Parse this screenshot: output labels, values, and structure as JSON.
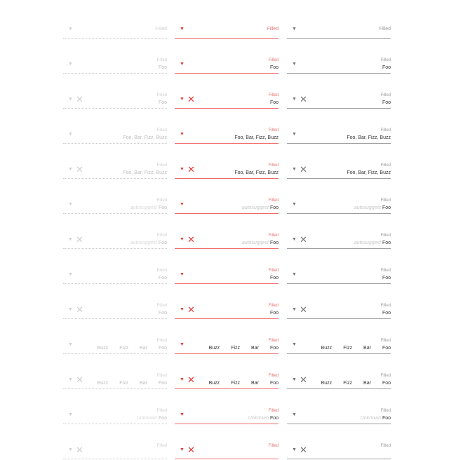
{
  "columns": [
    "disabled",
    "focused",
    "default"
  ],
  "rows": [
    {
      "label": "Filled",
      "value": "",
      "clear": false,
      "chips": [],
      "hint": "",
      "label_big": true
    },
    {
      "label": "Filled",
      "value": "Foo",
      "clear": false,
      "chips": [],
      "hint": ""
    },
    {
      "label": "Filled",
      "value": "Foo",
      "clear": true,
      "chips": [],
      "hint": ""
    },
    {
      "label": "Filled",
      "value": "Foo, Bar, Fizz, Buzz",
      "clear": false,
      "chips": [],
      "hint": ""
    },
    {
      "label": "Filled",
      "value": "Foo, Bar, Fizz, Buzz",
      "clear": true,
      "chips": [],
      "hint": ""
    },
    {
      "label": "Filled",
      "value": "Foo",
      "clear": false,
      "chips": [],
      "hint": "autosuggest"
    },
    {
      "label": "Filled",
      "value": "Foo",
      "clear": true,
      "chips": [],
      "hint": "autosuggest"
    },
    {
      "label": "Filled",
      "value": "Foo",
      "clear": false,
      "chips": [],
      "hint": ""
    },
    {
      "label": "Filled",
      "value": "Foo",
      "clear": true,
      "chips": [],
      "hint": ""
    },
    {
      "label": "Filled",
      "value": "",
      "clear": false,
      "chips": [
        "Foo",
        "Bar",
        "Fizz",
        "Buzz"
      ],
      "hint": ""
    },
    {
      "label": "Filled",
      "value": "",
      "clear": true,
      "chips": [
        "Foo",
        "Bar",
        "Fizz",
        "Buzz"
      ],
      "hint": ""
    },
    {
      "label": "Filled",
      "value": "Foo",
      "clear": false,
      "chips": [],
      "hint": "Unknown"
    },
    {
      "label": "Filled",
      "value": "",
      "clear": true,
      "chips": [],
      "hint": ""
    }
  ],
  "icons": {
    "arrow": "▼",
    "clear": "✕",
    "arrow_name": "dropdown-arrow-icon",
    "clear_name": "clear-icon"
  }
}
